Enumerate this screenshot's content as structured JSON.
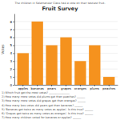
{
  "chart_data": {
    "type": "bar",
    "title": "Fruit Survey",
    "subtitle": "The children in Salamander Class had a vote on their tastiest fruit.",
    "annotations": [
      "1) Which fruit got the most votes? _______________",
      "2) How many more votes did plums get than peaches? ______",
      "3) How many more votes did grapes get than oranges? ______",
      "4) How many less votes did pears get than bananas? ______",
      "5) 'Bananas got twice as many votes as apples'. Is this true? ______",
      "6) 'Grapes got twice as many votes as oranges'. Is this true? ______",
      "7) How many children voted for bananas or apples? ______"
    ],
    "categories": [
      "apples",
      "bananas",
      "pears",
      "grapes",
      "oranges",
      "plums",
      "peaches"
    ],
    "values": [
      4,
      8,
      5,
      6,
      3,
      5,
      1
    ],
    "color": "#f5921e",
    "ylabel": "Votes",
    "ylim": [
      0,
      9
    ],
    "yticks": [
      0,
      1,
      2,
      3,
      4,
      5,
      6,
      7,
      8
    ],
    "grid": true
  }
}
